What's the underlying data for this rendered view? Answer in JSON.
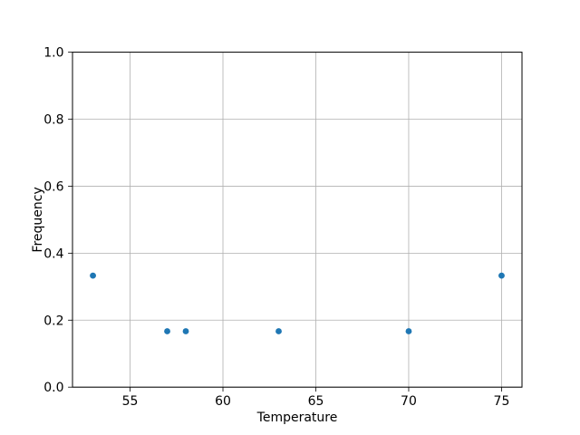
{
  "figure": {
    "background": "#ffffff"
  },
  "chart_data": {
    "type": "scatter",
    "xlabel": "Temperature",
    "ylabel": "Frequency",
    "points": [
      {
        "x": 53,
        "y": 0.333
      },
      {
        "x": 57,
        "y": 0.167
      },
      {
        "x": 58,
        "y": 0.167
      },
      {
        "x": 63,
        "y": 0.167
      },
      {
        "x": 70,
        "y": 0.167
      },
      {
        "x": 75,
        "y": 0.333
      }
    ],
    "xlim": [
      51.9,
      76.1
    ],
    "ylim": [
      0.0,
      1.0
    ],
    "xtick_values": [
      55,
      60,
      65,
      70,
      75
    ],
    "xtick_labels": [
      "55",
      "60",
      "65",
      "70",
      "75"
    ],
    "ytick_values": [
      0.0,
      0.2,
      0.4,
      0.6,
      0.8,
      1.0
    ],
    "ytick_labels": [
      "0.0",
      "0.2",
      "0.4",
      "0.6",
      "0.8",
      "1.0"
    ],
    "grid": true,
    "marker_color": "#1f77b4",
    "grid_color": "#b0b0b0",
    "axis_color": "#000000",
    "text_color": "#000000"
  }
}
